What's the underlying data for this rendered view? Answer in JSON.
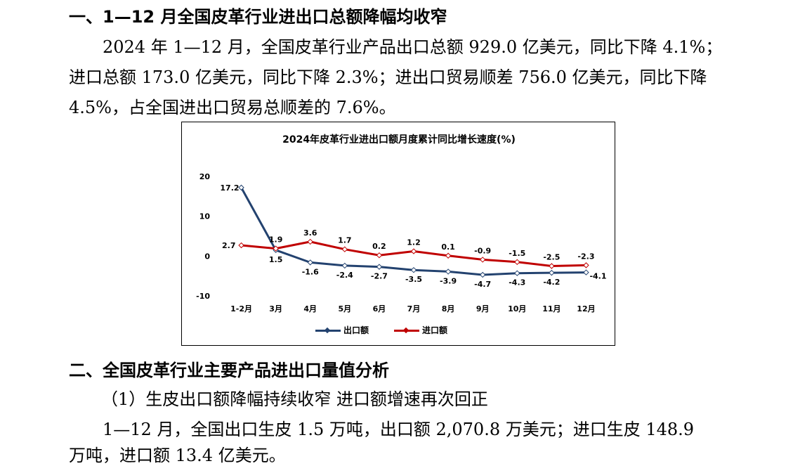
{
  "section1": {
    "heading": "一、1—12 月全国皮革行业进出口总额降幅均收窄",
    "para_lines": [
      "2024 年 1—12 月，全国皮革行业产品出口总额 929.0 亿美元，同比下降 4.1%；",
      "进口总额 173.0 亿美元，同比下降 2.3%；进出口贸易顺差 756.0 亿美元，同比下降",
      "4.5%，占全国进出口贸易总顺差的 7.6%。"
    ]
  },
  "section2": {
    "heading": "二、全国皮革行业主要产品进出口量值分析",
    "subheading": "（1）生皮出口额降幅持续收窄 进口额增速再次回正",
    "para_lines": [
      "1—12 月，全国出口生皮 1.5 万吨，出口额 2,070.8 万美元；进口生皮 148.9",
      "万吨，进口额 13.4 亿美元。"
    ]
  },
  "chart_data": {
    "type": "line",
    "title": "2024年皮革行业进出口额月度累计同比增长速度(%)",
    "categories": [
      "1-2月",
      "3月",
      "4月",
      "5月",
      "6月",
      "7月",
      "8月",
      "9月",
      "10月",
      "11月",
      "12月"
    ],
    "series": [
      {
        "name": "出口额",
        "color": "#23426f",
        "values": [
          17.2,
          1.5,
          -1.6,
          -2.4,
          -2.7,
          -3.5,
          -3.9,
          -4.7,
          -4.3,
          -4.2,
          -4.1
        ]
      },
      {
        "name": "进口额",
        "color": "#c00000",
        "values": [
          2.7,
          1.9,
          3.6,
          1.7,
          0.2,
          1.2,
          0.1,
          -0.9,
          -1.5,
          -2.5,
          -2.3
        ]
      }
    ],
    "ylim": [
      -10,
      20
    ],
    "yticks": [
      20,
      10,
      0,
      -10
    ],
    "legend": "bottom",
    "grid": false
  }
}
